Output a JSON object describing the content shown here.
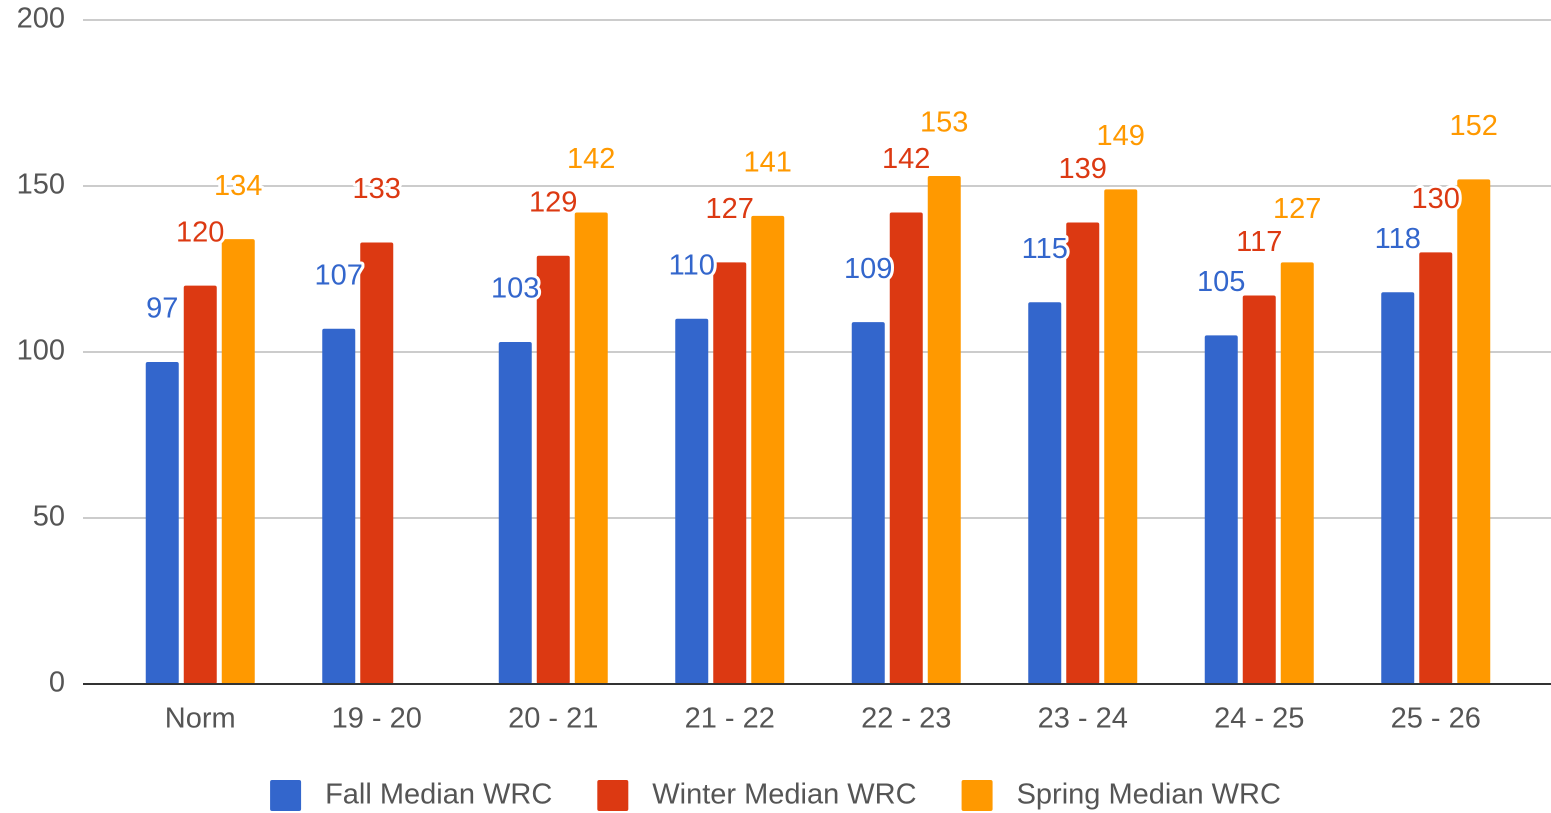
{
  "chart_data": {
    "type": "bar",
    "categories": [
      "Norm",
      "19 - 20",
      "20 - 21",
      "21 - 22",
      "22 - 23",
      "23 - 24",
      "24 - 25",
      "25 - 26"
    ],
    "series": [
      {
        "name": "Fall Median WRC",
        "color": "#3366cc",
        "values": [
          97,
          107,
          103,
          110,
          109,
          115,
          105,
          118
        ]
      },
      {
        "name": "Winter Median WRC",
        "color": "#dc3912",
        "values": [
          120,
          133,
          129,
          127,
          142,
          139,
          117,
          130
        ]
      },
      {
        "name": "Spring Median WRC",
        "color": "#ff9900",
        "values": [
          134,
          null,
          142,
          141,
          153,
          149,
          127,
          152
        ]
      }
    ],
    "ylim": [
      0,
      200
    ],
    "yticks": [
      0,
      50,
      100,
      150,
      200
    ],
    "grid": true,
    "legend": "bottom"
  }
}
